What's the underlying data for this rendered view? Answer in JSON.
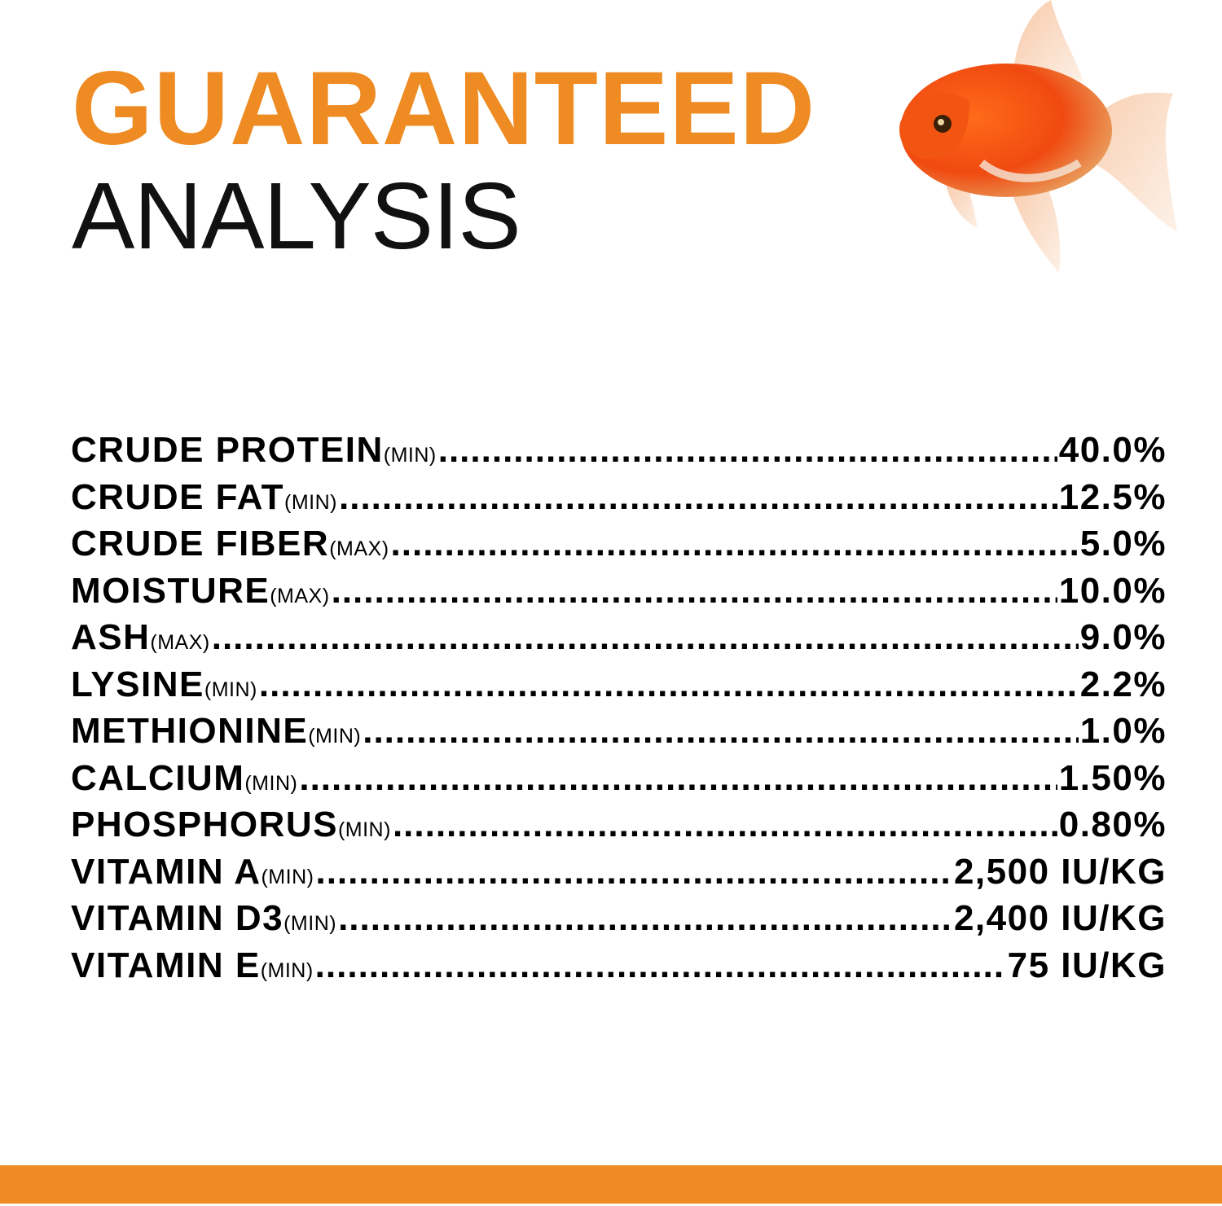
{
  "heading": {
    "line1": "GUARANTEED",
    "line2": "ANALYSIS"
  },
  "colors": {
    "accent": "#EE8B22",
    "text": "#000000"
  },
  "image": "goldfish",
  "analysis": [
    {
      "name": "CRUDE PROTEIN",
      "qualifier": "(MIN)",
      "value": "40.0%"
    },
    {
      "name": "CRUDE FAT",
      "qualifier": "(MIN)",
      "value": "12.5%"
    },
    {
      "name": "CRUDE FIBER",
      "qualifier": "(MAX)",
      "value": "5.0%"
    },
    {
      "name": "MOISTURE",
      "qualifier": "(MAX)",
      "value": "10.0%"
    },
    {
      "name": "ASH",
      "qualifier": "(MAX)",
      "value": "9.0%"
    },
    {
      "name": "LYSINE",
      "qualifier": "(MIN)",
      "value": "2.2%"
    },
    {
      "name": "METHIONINE",
      "qualifier": "(MIN)",
      "value": "1.0%"
    },
    {
      "name": "CALCIUM",
      "qualifier": "(MIN)",
      "value": "1.50%"
    },
    {
      "name": "PHOSPHORUS",
      "qualifier": "(MIN)",
      "value": "0.80%"
    },
    {
      "name": "VITAMIN A",
      "qualifier": "(MIN)",
      "value": "2,500 IU/KG"
    },
    {
      "name": "VITAMIN D3",
      "qualifier": "(MIN)",
      "value": "2,400 IU/KG"
    },
    {
      "name": "VITAMIN E",
      "qualifier": "(MIN)",
      "value": "75 IU/KG"
    }
  ]
}
